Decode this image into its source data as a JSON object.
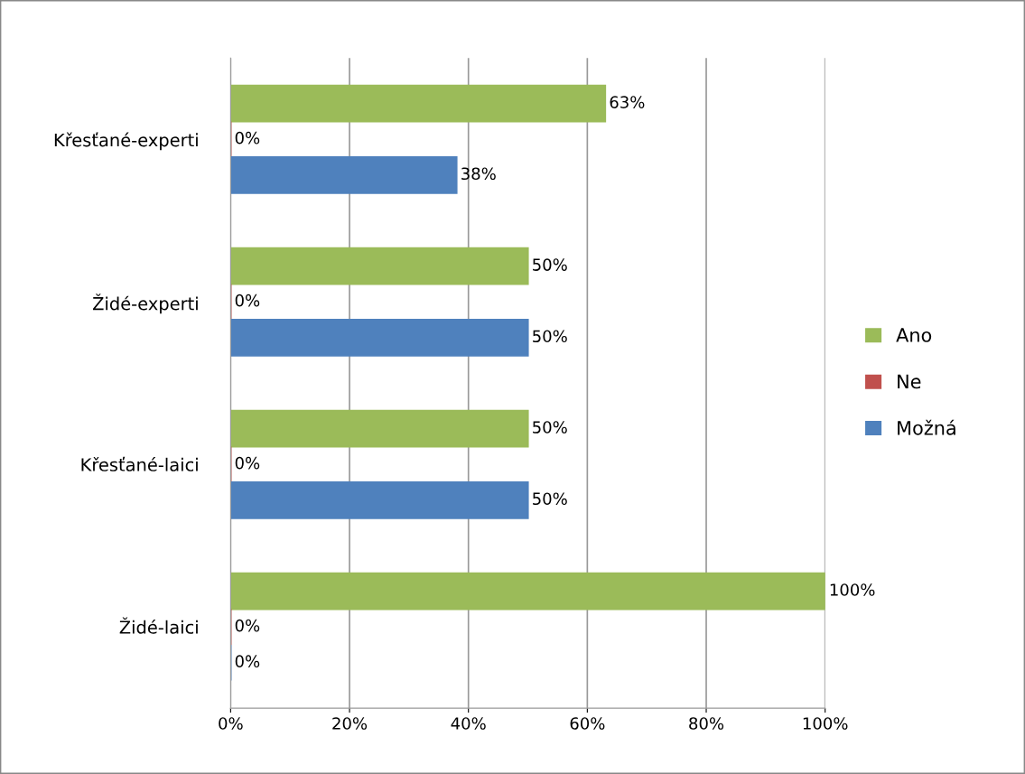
{
  "chart_data": {
    "type": "bar",
    "orientation": "horizontal",
    "categories": [
      "Křesťané-experti",
      "Židé-experti",
      "Křesťané-laici",
      "Židé-laici"
    ],
    "series": [
      {
        "name": "Ano",
        "color": "#9bbb59",
        "values": [
          63,
          50,
          50,
          100
        ],
        "value_labels": [
          "63%",
          "50%",
          "50%",
          "100%"
        ]
      },
      {
        "name": "Ne",
        "color": "#c0504d",
        "values": [
          0,
          0,
          0,
          0
        ],
        "value_labels": [
          "0%",
          "0%",
          "0%",
          "0%"
        ]
      },
      {
        "name": "Možná",
        "color": "#4f81bd",
        "values": [
          38,
          50,
          50,
          0
        ],
        "value_labels": [
          "38%",
          "50%",
          "50%",
          "0%"
        ]
      }
    ],
    "xlim": [
      0,
      100
    ],
    "xticks": [
      {
        "value": 0,
        "label": "0%"
      },
      {
        "value": 20,
        "label": "20%"
      },
      {
        "value": 40,
        "label": "40%"
      },
      {
        "value": 60,
        "label": "60%"
      },
      {
        "value": 80,
        "label": "80%"
      },
      {
        "value": 100,
        "label": "100%"
      }
    ],
    "grid": "x",
    "legend": "right"
  }
}
